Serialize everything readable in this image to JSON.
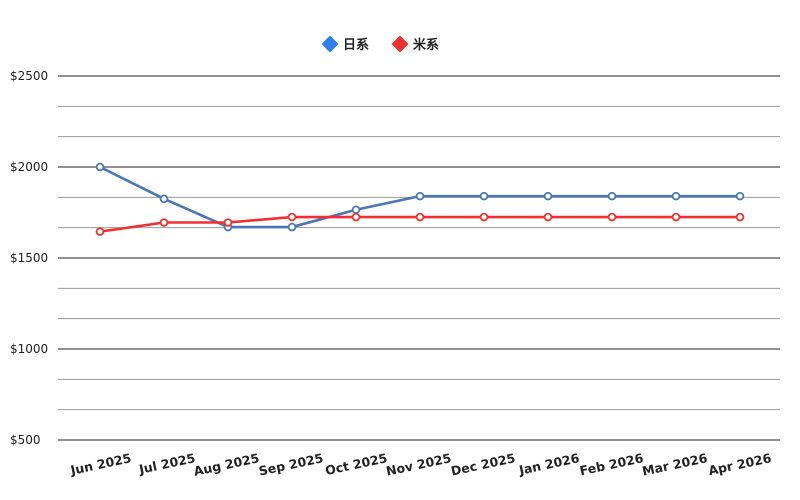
{
  "chart_data": {
    "type": "line",
    "title": "",
    "xlabel": "",
    "ylabel": "",
    "x": [
      "Jun 2025",
      "Jul 2025",
      "Aug 2025",
      "Sep 2025",
      "Oct 2025",
      "Nov 2025",
      "Dec 2025",
      "Jan 2026",
      "Feb 2026",
      "Mar 2026",
      "Apr 2026"
    ],
    "series": [
      {
        "name": "日系",
        "color": "#4a76b8",
        "marker_color": "#4a76b8",
        "legend_color": "#2f80ed",
        "values": [
          2000,
          1825,
          1670,
          1670,
          1765,
          1840,
          1840,
          1840,
          1840,
          1840,
          1840
        ]
      },
      {
        "name": "米系",
        "color": "#f03030",
        "marker_color": "#f03030",
        "legend_color": "#f03030",
        "values": [
          1645,
          1695,
          1695,
          1725,
          1725,
          1725,
          1725,
          1725,
          1725,
          1725,
          1725
        ]
      }
    ],
    "ylim": [
      500,
      2500
    ],
    "y_ticks": [
      500,
      1000,
      1500,
      2000,
      2500
    ],
    "y_tick_labels": [
      "$500",
      "$1000",
      "$1500",
      "$2000",
      "$2500"
    ],
    "grid": true,
    "legend_position": "top-center"
  }
}
